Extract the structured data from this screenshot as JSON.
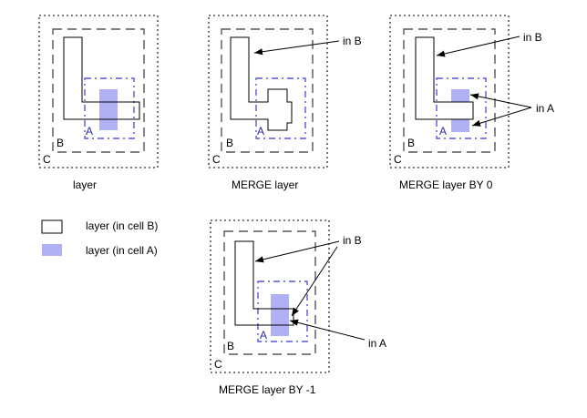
{
  "colors": {
    "cell_a_fill": "#b0b0f4",
    "cell_a_outline": "#5555dd",
    "cell_b_outline": "#555555",
    "shape_outline": "#000000",
    "background": "#ffffff"
  },
  "cell_labels": {
    "a": "A",
    "b": "B",
    "c": "C"
  },
  "panels": [
    {
      "caption": "layer"
    },
    {
      "caption": "MERGE layer",
      "annotation_in_b": "in B"
    },
    {
      "caption": "MERGE layer BY 0",
      "annotation_in_b": "in B",
      "annotation_in_a": "in A"
    },
    {
      "caption": "MERGE layer BY -1",
      "annotation_in_b": "in B",
      "annotation_in_a": "in A"
    }
  ],
  "legend": {
    "items": [
      {
        "label": "layer (in cell B)",
        "swatch": "outline"
      },
      {
        "label": "layer (in cell A)",
        "swatch": "filled"
      }
    ]
  }
}
